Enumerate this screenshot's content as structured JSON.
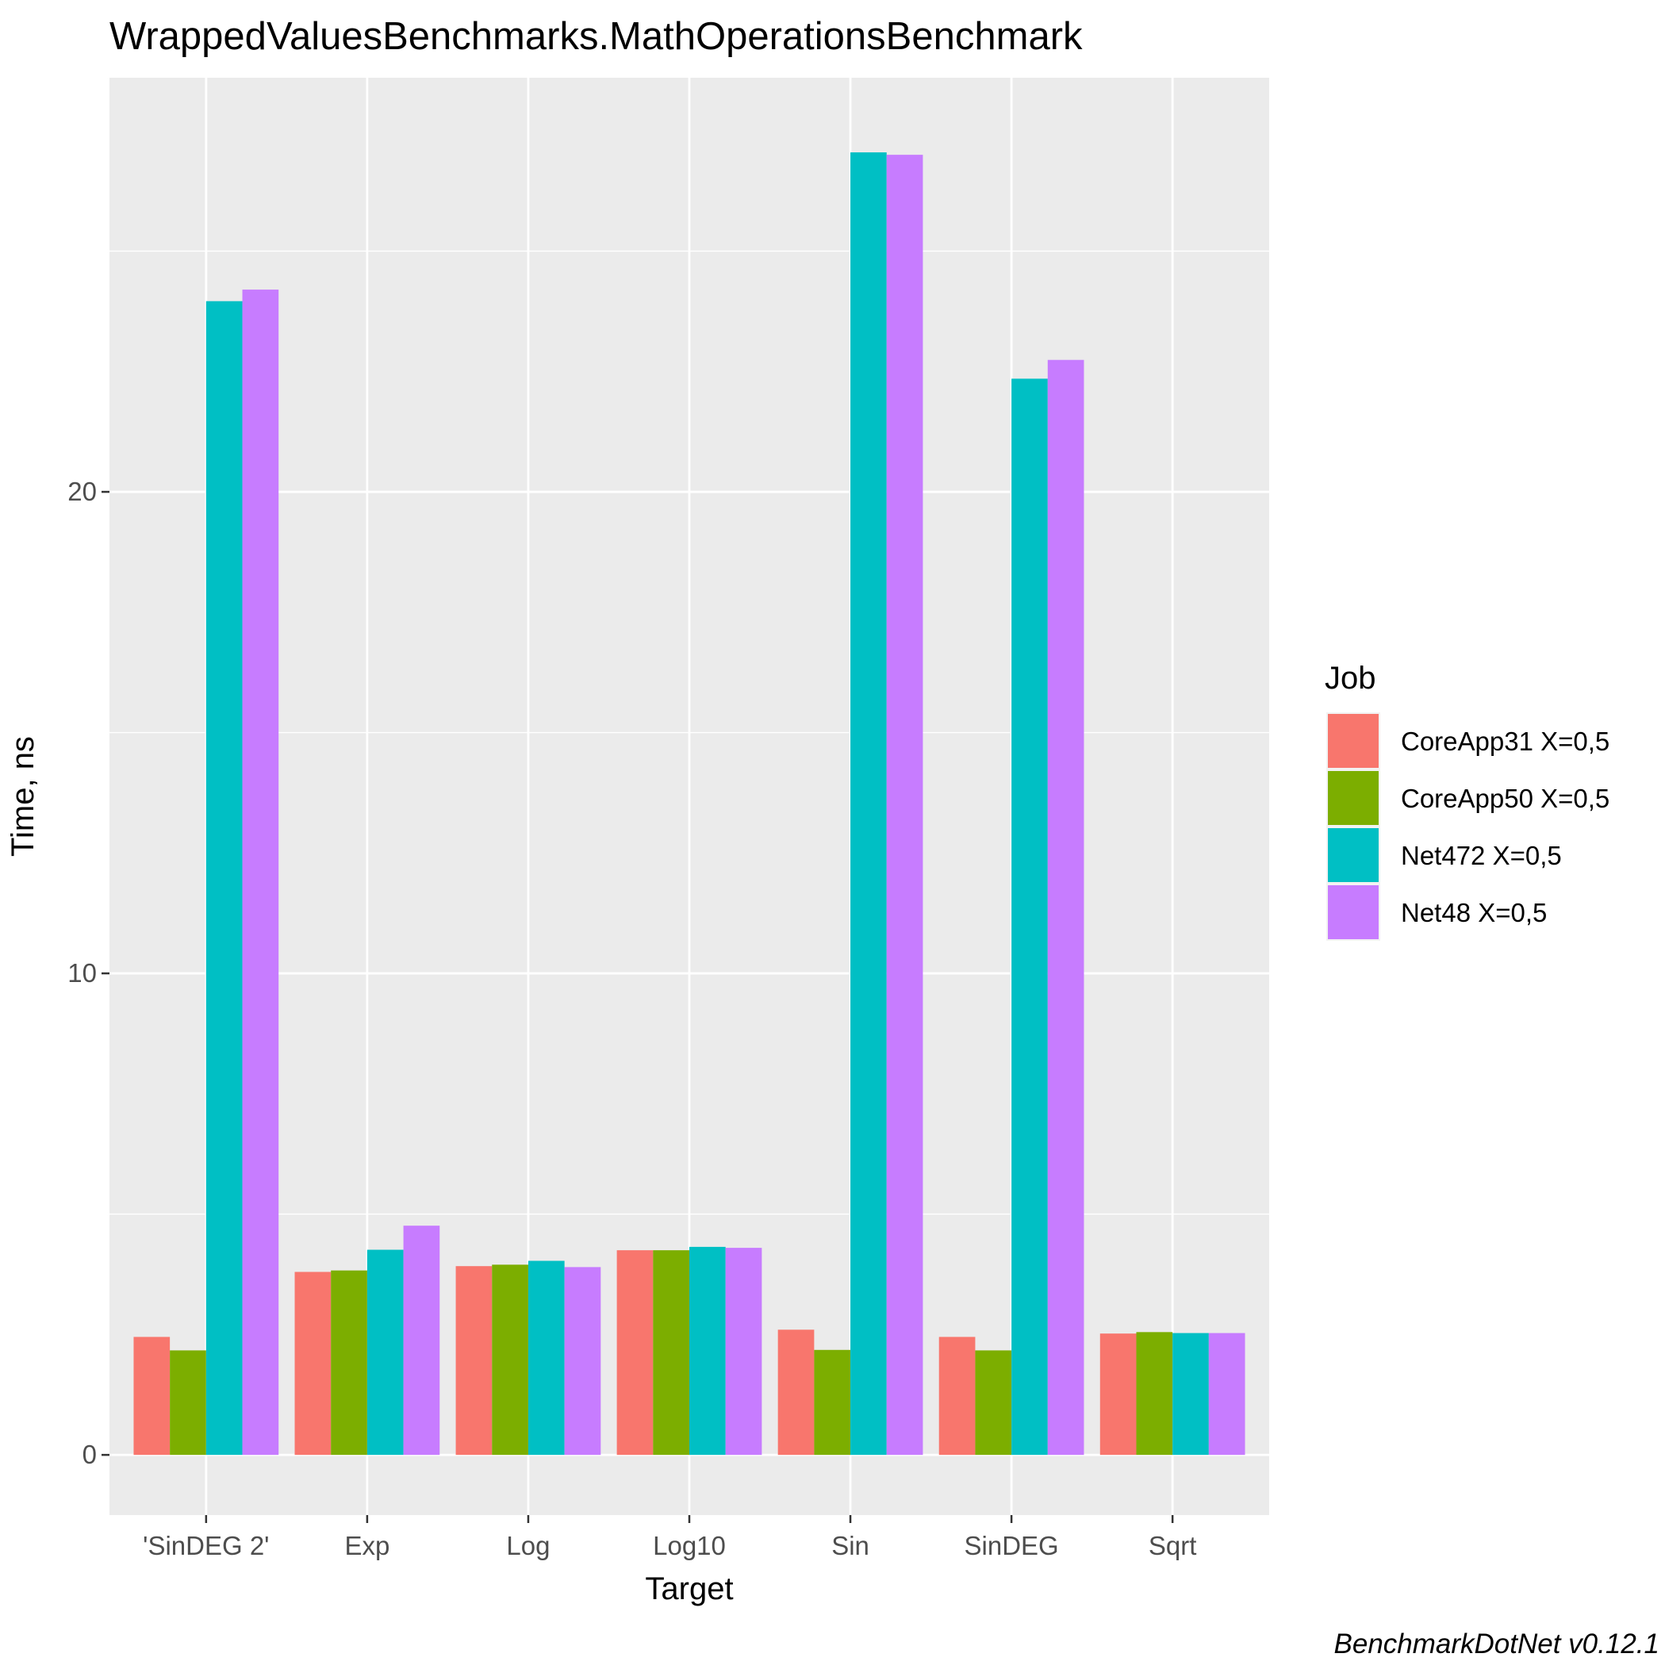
{
  "chart_data": {
    "type": "bar",
    "title": "WrappedValuesBenchmarks.MathOperationsBenchmark",
    "xlabel": "Target",
    "ylabel": "Time, ns",
    "caption": "BenchmarkDotNet v0.12.1",
    "categories": [
      "'SinDEG 2'",
      "Exp",
      "Log",
      "Log10",
      "Sin",
      "SinDEG",
      "Sqrt"
    ],
    "ylim": [
      -1.25,
      28.6
    ],
    "yticks": [
      0,
      10,
      20
    ],
    "grid": true,
    "legend": {
      "title": "Job",
      "position": "right"
    },
    "series": [
      {
        "name": "CoreApp31 X=0,5",
        "color": "#F8766D",
        "values": [
          2.45,
          3.8,
          3.92,
          4.25,
          2.6,
          2.45,
          2.52
        ]
      },
      {
        "name": "CoreApp50 X=0,5",
        "color": "#7CAE00",
        "values": [
          2.17,
          3.83,
          3.95,
          4.25,
          2.18,
          2.17,
          2.55
        ]
      },
      {
        "name": "Net472 X=0,5",
        "color": "#00BFC4",
        "values": [
          23.96,
          4.26,
          4.03,
          4.32,
          27.05,
          22.35,
          2.53
        ]
      },
      {
        "name": "Net48 X=0,5",
        "color": "#C77CFF",
        "values": [
          24.2,
          4.76,
          3.9,
          4.3,
          27.0,
          22.74,
          2.53
        ]
      }
    ]
  }
}
